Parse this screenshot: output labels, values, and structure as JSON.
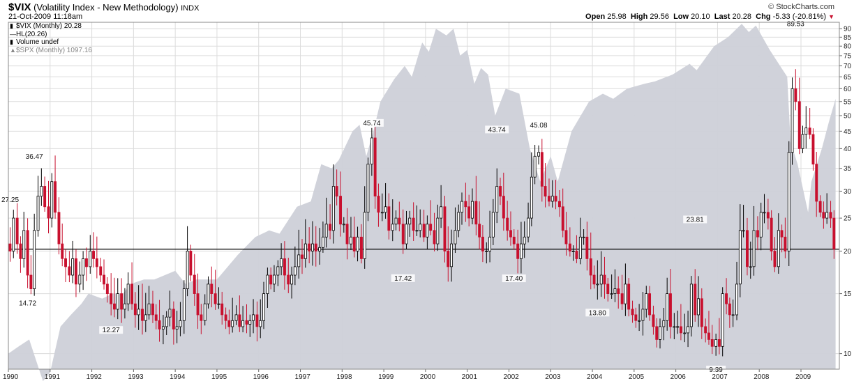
{
  "header": {
    "symbol": "$VIX",
    "description": "(Volatility Index - New Methodology)",
    "exchange": "INDX",
    "datetime": "21-Oct-2009 11:18am",
    "brand": "© StockCharts.com",
    "quote": {
      "open_label": "Open",
      "open": "25.98",
      "high_label": "High",
      "high": "29.56",
      "low_label": "Low",
      "low": "20.10",
      "last_label": "Last",
      "last": "20.28",
      "chg_label": "Chg",
      "chg": "-5.33 (-20.81%)"
    }
  },
  "legend": {
    "vix": "$VIX (Monthly) 20.28",
    "hl": "HL(20.26)",
    "volume": "Volume undef",
    "spx": "$SPX (Monthly) 1097.16"
  },
  "colors": {
    "up_fill": "#ffffff",
    "down_fill": "#c8102e",
    "candle_line": "#000000",
    "spx_area": "#cdd0d8",
    "grid": "#dcdcdc",
    "hl_line": "#000000"
  },
  "chart_data": {
    "type": "candlestick",
    "y_scale": "log",
    "ylim": [
      9,
      94
    ],
    "xlim": [
      1990.0,
      2009.92
    ],
    "y_ticks": [
      10,
      15,
      20,
      25,
      30,
      35,
      40,
      45,
      50,
      55,
      60,
      65,
      70,
      75,
      80,
      85,
      90
    ],
    "x_ticks": [
      "1990",
      "1991",
      "1992",
      "1993",
      "1994",
      "1995",
      "1996",
      "1997",
      "1998",
      "1999",
      "2000",
      "2001",
      "2002",
      "2003",
      "2004",
      "2005",
      "2006",
      "2007",
      "2008",
      "2009"
    ],
    "grid": true,
    "legend_position": "top-left",
    "horizontal_line": {
      "name": "HL",
      "value": 20.26
    },
    "vix_path": [
      [
        1990.0,
        20
      ],
      [
        1990.08,
        25
      ],
      [
        1990.17,
        21
      ],
      [
        1990.25,
        19
      ],
      [
        1990.33,
        23
      ],
      [
        1990.42,
        17
      ],
      [
        1990.5,
        15.5
      ],
      [
        1990.58,
        23
      ],
      [
        1990.67,
        29
      ],
      [
        1990.75,
        31
      ],
      [
        1990.83,
        27
      ],
      [
        1990.92,
        25
      ],
      [
        1991.0,
        32
      ],
      [
        1991.08,
        26
      ],
      [
        1991.17,
        21
      ],
      [
        1991.25,
        19
      ],
      [
        1991.33,
        18
      ],
      [
        1991.42,
        17
      ],
      [
        1991.5,
        19
      ],
      [
        1991.58,
        16
      ],
      [
        1991.67,
        17
      ],
      [
        1991.75,
        19
      ],
      [
        1991.83,
        18
      ],
      [
        1991.92,
        20
      ],
      [
        1992.0,
        19
      ],
      [
        1992.08,
        18
      ],
      [
        1992.17,
        17
      ],
      [
        1992.25,
        16
      ],
      [
        1992.33,
        15
      ],
      [
        1992.42,
        14
      ],
      [
        1992.5,
        13.5
      ],
      [
        1992.58,
        15
      ],
      [
        1992.67,
        13.5
      ],
      [
        1992.75,
        14
      ],
      [
        1992.83,
        16
      ],
      [
        1992.92,
        14
      ],
      [
        1993.0,
        13
      ],
      [
        1993.08,
        13.5
      ],
      [
        1993.17,
        12.5
      ],
      [
        1993.25,
        13
      ],
      [
        1993.33,
        14
      ],
      [
        1993.42,
        13
      ],
      [
        1993.5,
        12.5
      ],
      [
        1993.58,
        11.8
      ],
      [
        1993.67,
        12
      ],
      [
        1993.75,
        12.8
      ],
      [
        1993.83,
        13.5
      ],
      [
        1993.92,
        11.8
      ],
      [
        1994.0,
        12
      ],
      [
        1994.08,
        12.5
      ],
      [
        1994.17,
        15.5
      ],
      [
        1994.25,
        20
      ],
      [
        1994.33,
        17
      ],
      [
        1994.42,
        15
      ],
      [
        1994.5,
        13
      ],
      [
        1994.58,
        12.5
      ],
      [
        1994.67,
        14
      ],
      [
        1994.75,
        16
      ],
      [
        1994.83,
        15
      ],
      [
        1994.92,
        14
      ],
      [
        1995.0,
        14
      ],
      [
        1995.08,
        13
      ],
      [
        1995.17,
        12.5
      ],
      [
        1995.25,
        12
      ],
      [
        1995.33,
        12.5
      ],
      [
        1995.42,
        13
      ],
      [
        1995.5,
        12
      ],
      [
        1995.58,
        12.5
      ],
      [
        1995.67,
        12.2
      ],
      [
        1995.75,
        12.5
      ],
      [
        1995.83,
        13
      ],
      [
        1995.92,
        12
      ],
      [
        1996.0,
        12.5
      ],
      [
        1996.08,
        15
      ],
      [
        1996.17,
        17
      ],
      [
        1996.25,
        16
      ],
      [
        1996.33,
        17
      ],
      [
        1996.42,
        18
      ],
      [
        1996.5,
        19
      ],
      [
        1996.58,
        17
      ],
      [
        1996.67,
        16
      ],
      [
        1996.75,
        17
      ],
      [
        1996.83,
        18
      ],
      [
        1996.92,
        19.5
      ],
      [
        1997.0,
        19
      ],
      [
        1997.08,
        21
      ],
      [
        1997.17,
        20
      ],
      [
        1997.25,
        21
      ],
      [
        1997.33,
        20
      ],
      [
        1997.42,
        20.5
      ],
      [
        1997.5,
        22
      ],
      [
        1997.58,
        24
      ],
      [
        1997.67,
        23
      ],
      [
        1997.75,
        31
      ],
      [
        1997.83,
        29
      ],
      [
        1997.92,
        24
      ],
      [
        1998.0,
        24
      ],
      [
        1998.08,
        21
      ],
      [
        1998.17,
        22
      ],
      [
        1998.25,
        20
      ],
      [
        1998.33,
        22
      ],
      [
        1998.42,
        19
      ],
      [
        1998.5,
        26
      ],
      [
        1998.58,
        36
      ],
      [
        1998.67,
        43
      ],
      [
        1998.75,
        29
      ],
      [
        1998.83,
        26
      ],
      [
        1998.92,
        26
      ],
      [
        1999.0,
        27
      ],
      [
        1999.08,
        23
      ],
      [
        1999.17,
        24
      ],
      [
        1999.25,
        25
      ],
      [
        1999.33,
        24
      ],
      [
        1999.42,
        21
      ],
      [
        1999.5,
        24
      ],
      [
        1999.58,
        25
      ],
      [
        1999.67,
        23
      ],
      [
        1999.75,
        23
      ],
      [
        1999.83,
        24
      ],
      [
        1999.92,
        22
      ],
      [
        2000.0,
        24
      ],
      [
        2000.08,
        23
      ],
      [
        2000.17,
        21
      ],
      [
        2000.25,
        25
      ],
      [
        2000.33,
        27
      ],
      [
        2000.42,
        20
      ],
      [
        2000.5,
        18
      ],
      [
        2000.58,
        21
      ],
      [
        2000.67,
        23
      ],
      [
        2000.75,
        26
      ],
      [
        2000.83,
        28
      ],
      [
        2000.92,
        27
      ],
      [
        2001.0,
        25
      ],
      [
        2001.08,
        28
      ],
      [
        2001.17,
        24
      ],
      [
        2001.25,
        22
      ],
      [
        2001.33,
        20
      ],
      [
        2001.42,
        20
      ],
      [
        2001.5,
        22
      ],
      [
        2001.58,
        26
      ],
      [
        2001.67,
        31
      ],
      [
        2001.75,
        29
      ],
      [
        2001.83,
        25
      ],
      [
        2001.92,
        23
      ],
      [
        2002.0,
        22
      ],
      [
        2002.08,
        21
      ],
      [
        2002.17,
        19
      ],
      [
        2002.25,
        21
      ],
      [
        2002.33,
        22
      ],
      [
        2002.42,
        25
      ],
      [
        2002.5,
        33
      ],
      [
        2002.58,
        38
      ],
      [
        2002.67,
        39
      ],
      [
        2002.75,
        31
      ],
      [
        2002.83,
        29
      ],
      [
        2002.92,
        28
      ],
      [
        2003.0,
        29
      ],
      [
        2003.08,
        28
      ],
      [
        2003.17,
        27
      ],
      [
        2003.25,
        23
      ],
      [
        2003.33,
        21
      ],
      [
        2003.42,
        20
      ],
      [
        2003.5,
        20
      ],
      [
        2003.58,
        19
      ],
      [
        2003.67,
        22
      ],
      [
        2003.75,
        22
      ],
      [
        2003.83,
        19
      ],
      [
        2003.92,
        17
      ],
      [
        2004.0,
        16
      ],
      [
        2004.08,
        16
      ],
      [
        2004.17,
        17
      ],
      [
        2004.25,
        16
      ],
      [
        2004.33,
        15
      ],
      [
        2004.42,
        15
      ],
      [
        2004.5,
        15.5
      ],
      [
        2004.58,
        15
      ],
      [
        2004.67,
        14
      ],
      [
        2004.75,
        16
      ],
      [
        2004.83,
        13.5
      ],
      [
        2004.92,
        13
      ],
      [
        2005.0,
        12.5
      ],
      [
        2005.08,
        12.5
      ],
      [
        2005.17,
        13.5
      ],
      [
        2005.25,
        15
      ],
      [
        2005.33,
        13
      ],
      [
        2005.42,
        12
      ],
      [
        2005.5,
        11
      ],
      [
        2005.58,
        12
      ],
      [
        2005.67,
        12.5
      ],
      [
        2005.75,
        15
      ],
      [
        2005.83,
        12
      ],
      [
        2005.92,
        12
      ],
      [
        2006.0,
        12
      ],
      [
        2006.08,
        11.5
      ],
      [
        2006.17,
        11.5
      ],
      [
        2006.25,
        12
      ],
      [
        2006.33,
        16
      ],
      [
        2006.42,
        13
      ],
      [
        2006.5,
        14.5
      ],
      [
        2006.58,
        12
      ],
      [
        2006.67,
        11.5
      ],
      [
        2006.75,
        11
      ],
      [
        2006.83,
        10.5
      ],
      [
        2006.92,
        11
      ],
      [
        2007.0,
        10.5
      ],
      [
        2007.08,
        15
      ],
      [
        2007.17,
        14
      ],
      [
        2007.25,
        13
      ],
      [
        2007.33,
        13
      ],
      [
        2007.42,
        16
      ],
      [
        2007.5,
        23
      ],
      [
        2007.58,
        23
      ],
      [
        2007.67,
        18
      ],
      [
        2007.75,
        18
      ],
      [
        2007.83,
        23
      ],
      [
        2007.92,
        22
      ],
      [
        2008.0,
        26
      ],
      [
        2008.08,
        26
      ],
      [
        2008.17,
        25
      ],
      [
        2008.25,
        20
      ],
      [
        2008.33,
        18
      ],
      [
        2008.42,
        23
      ],
      [
        2008.5,
        22
      ],
      [
        2008.58,
        20
      ],
      [
        2008.67,
        39
      ],
      [
        2008.75,
        60
      ],
      [
        2008.83,
        55
      ],
      [
        2008.92,
        40
      ],
      [
        2009.0,
        44
      ],
      [
        2009.08,
        46
      ],
      [
        2009.17,
        44
      ],
      [
        2009.25,
        36
      ],
      [
        2009.33,
        28
      ],
      [
        2009.42,
        26
      ],
      [
        2009.5,
        25
      ],
      [
        2009.58,
        26
      ],
      [
        2009.67,
        25
      ],
      [
        2009.75,
        20.28
      ]
    ],
    "annotations": [
      {
        "label": "27.25",
        "x": 1990.0,
        "y": 27.25,
        "pos": "above"
      },
      {
        "label": "36.47",
        "x": 1990.58,
        "y": 36.47,
        "pos": "above"
      },
      {
        "label": "14.72",
        "x": 1990.42,
        "y": 14.72,
        "pos": "below"
      },
      {
        "label": "12.27",
        "x": 1992.42,
        "y": 12.27,
        "pos": "below"
      },
      {
        "label": "45.74",
        "x": 1998.67,
        "y": 45.74,
        "pos": "above"
      },
      {
        "label": "17.42",
        "x": 1999.42,
        "y": 17.42,
        "pos": "below"
      },
      {
        "label": "43.74",
        "x": 2001.67,
        "y": 43.74,
        "pos": "above"
      },
      {
        "label": "45.08",
        "x": 2002.67,
        "y": 45.08,
        "pos": "above"
      },
      {
        "label": "17.40",
        "x": 2002.08,
        "y": 17.4,
        "pos": "below"
      },
      {
        "label": "13.80",
        "x": 2004.08,
        "y": 13.8,
        "pos": "below"
      },
      {
        "label": "23.81",
        "x": 2006.42,
        "y": 23.81,
        "pos": "above"
      },
      {
        "label": "9.39",
        "x": 2006.92,
        "y": 9.39,
        "pos": "below"
      },
      {
        "label": "89.53",
        "x": 2008.83,
        "y": 89.53,
        "pos": "above"
      }
    ],
    "spx_overlay": {
      "name": "$SPX (Monthly)",
      "points": [
        [
          1990.0,
          10
        ],
        [
          1990.25,
          10.5
        ],
        [
          1990.5,
          11
        ],
        [
          1990.67,
          9.5
        ],
        [
          1990.83,
          8.3
        ],
        [
          1991.0,
          8.8
        ],
        [
          1991.25,
          12
        ],
        [
          1991.5,
          13
        ],
        [
          1991.75,
          14
        ],
        [
          1991.92,
          15
        ],
        [
          1992.25,
          14.5
        ],
        [
          1992.5,
          15
        ],
        [
          1992.75,
          15
        ],
        [
          1992.92,
          16
        ],
        [
          1993.25,
          16.5
        ],
        [
          1993.5,
          16.5
        ],
        [
          1993.75,
          17
        ],
        [
          1994.0,
          17.5
        ],
        [
          1994.25,
          16
        ],
        [
          1994.5,
          16.5
        ],
        [
          1994.75,
          16.5
        ],
        [
          1995.0,
          16.5
        ],
        [
          1995.5,
          19.5
        ],
        [
          1995.92,
          22
        ],
        [
          1996.25,
          23
        ],
        [
          1996.5,
          22.5
        ],
        [
          1996.92,
          27
        ],
        [
          1997.25,
          28
        ],
        [
          1997.5,
          36
        ],
        [
          1997.75,
          35
        ],
        [
          1997.92,
          37
        ],
        [
          1998.25,
          45
        ],
        [
          1998.42,
          47
        ],
        [
          1998.58,
          38
        ],
        [
          1998.75,
          45
        ],
        [
          1998.92,
          55
        ],
        [
          1999.25,
          64
        ],
        [
          1999.5,
          70
        ],
        [
          1999.67,
          65
        ],
        [
          1999.92,
          82
        ],
        [
          2000.08,
          77
        ],
        [
          2000.25,
          90
        ],
        [
          2000.5,
          86
        ],
        [
          2000.67,
          90
        ],
        [
          2000.83,
          75
        ],
        [
          2001.0,
          78
        ],
        [
          2001.17,
          62
        ],
        [
          2001.33,
          69
        ],
        [
          2001.5,
          66
        ],
        [
          2001.67,
          50
        ],
        [
          2001.92,
          60
        ],
        [
          2002.25,
          58
        ],
        [
          2002.5,
          40
        ],
        [
          2002.75,
          32
        ],
        [
          2003.0,
          38
        ],
        [
          2003.17,
          32
        ],
        [
          2003.5,
          45
        ],
        [
          2003.92,
          55
        ],
        [
          2004.25,
          58
        ],
        [
          2004.5,
          56
        ],
        [
          2004.83,
          60
        ],
        [
          2005.25,
          62
        ],
        [
          2005.5,
          63
        ],
        [
          2005.92,
          66
        ],
        [
          2006.33,
          71
        ],
        [
          2006.5,
          68
        ],
        [
          2006.92,
          80
        ],
        [
          2007.25,
          85
        ],
        [
          2007.58,
          93
        ],
        [
          2007.75,
          88
        ],
        [
          2007.92,
          92
        ],
        [
          2008.25,
          78
        ],
        [
          2008.5,
          70
        ],
        [
          2008.67,
          65
        ],
        [
          2008.75,
          42
        ],
        [
          2008.92,
          36
        ],
        [
          2009.17,
          26
        ],
        [
          2009.25,
          32
        ],
        [
          2009.5,
          40
        ],
        [
          2009.67,
          48
        ],
        [
          2009.83,
          56
        ]
      ]
    }
  }
}
